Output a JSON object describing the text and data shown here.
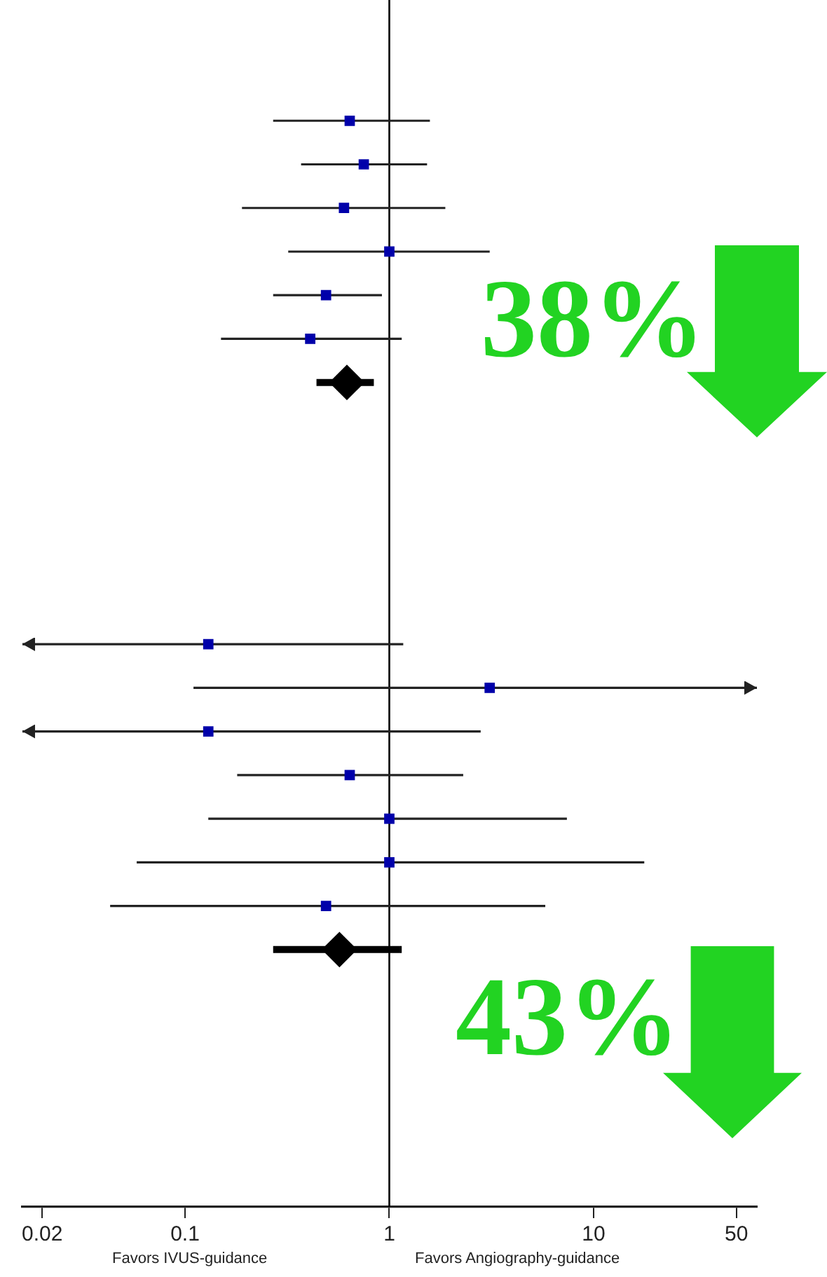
{
  "chart_data": {
    "type": "scatter",
    "orientation": "horizontal",
    "categories": [
      null,
      null,
      null,
      null,
      null,
      null,
      null,
      null,
      null,
      null,
      null,
      null,
      null,
      null,
      null,
      null,
      null,
      null,
      null,
      null,
      null,
      null,
      null,
      null,
      null,
      null,
      null
    ],
    "series": [
      {
        "color": "#0000aa",
        "marker": "square",
        "values": [
          null,
          null,
          0.64,
          0.75,
          0.6,
          1.0,
          0.49,
          0.41,
          null,
          null,
          null,
          null,
          null,
          null,
          0.13,
          3.1,
          0.13,
          0.64,
          1.0,
          1.0,
          0.49,
          null,
          null,
          null,
          null,
          null,
          null
        ],
        "errors": [
          null,
          null,
          [
            0.27,
            1.58
          ],
          [
            0.37,
            1.53
          ],
          [
            0.19,
            1.88
          ],
          [
            0.32,
            3.1
          ],
          [
            0.27,
            0.92
          ],
          [
            0.15,
            1.15
          ],
          null,
          null,
          null,
          null,
          null,
          null,
          [
            0.016,
            1.17
          ],
          [
            0.11,
            63
          ],
          [
            0.016,
            2.8
          ],
          [
            0.18,
            2.3
          ],
          [
            0.13,
            7.4
          ],
          [
            0.058,
            17.7
          ],
          [
            0.043,
            5.8
          ],
          null,
          null,
          null,
          null,
          null,
          null
        ]
      },
      {
        "color": "#000000",
        "marker": "diamond",
        "values": [
          null,
          null,
          null,
          null,
          null,
          null,
          null,
          null,
          0.62,
          null,
          null,
          null,
          null,
          null,
          null,
          null,
          null,
          null,
          null,
          null,
          null,
          0.57,
          null,
          null,
          null,
          null,
          null
        ],
        "errors": [
          null,
          null,
          null,
          null,
          null,
          null,
          null,
          null,
          [
            0.44,
            0.84
          ],
          null,
          null,
          null,
          null,
          null,
          null,
          null,
          null,
          null,
          null,
          null,
          null,
          [
            0.27,
            1.15
          ],
          null,
          null,
          null,
          null,
          null
        ]
      }
    ],
    "log": "x",
    "xlim": [
      0.016,
      63
    ],
    "xticks": [
      0.02,
      0.1,
      1,
      10,
      50
    ],
    "tick_labels": "x",
    "grid": false,
    "legend": false,
    "ref_lines": [
      {
        "axis": "x",
        "value": 1,
        "color": "#000000"
      }
    ],
    "annotations": [
      "38%",
      "43%",
      "Favors IVUS-guidance",
      "Favors Angiography-guidance"
    ]
  }
}
